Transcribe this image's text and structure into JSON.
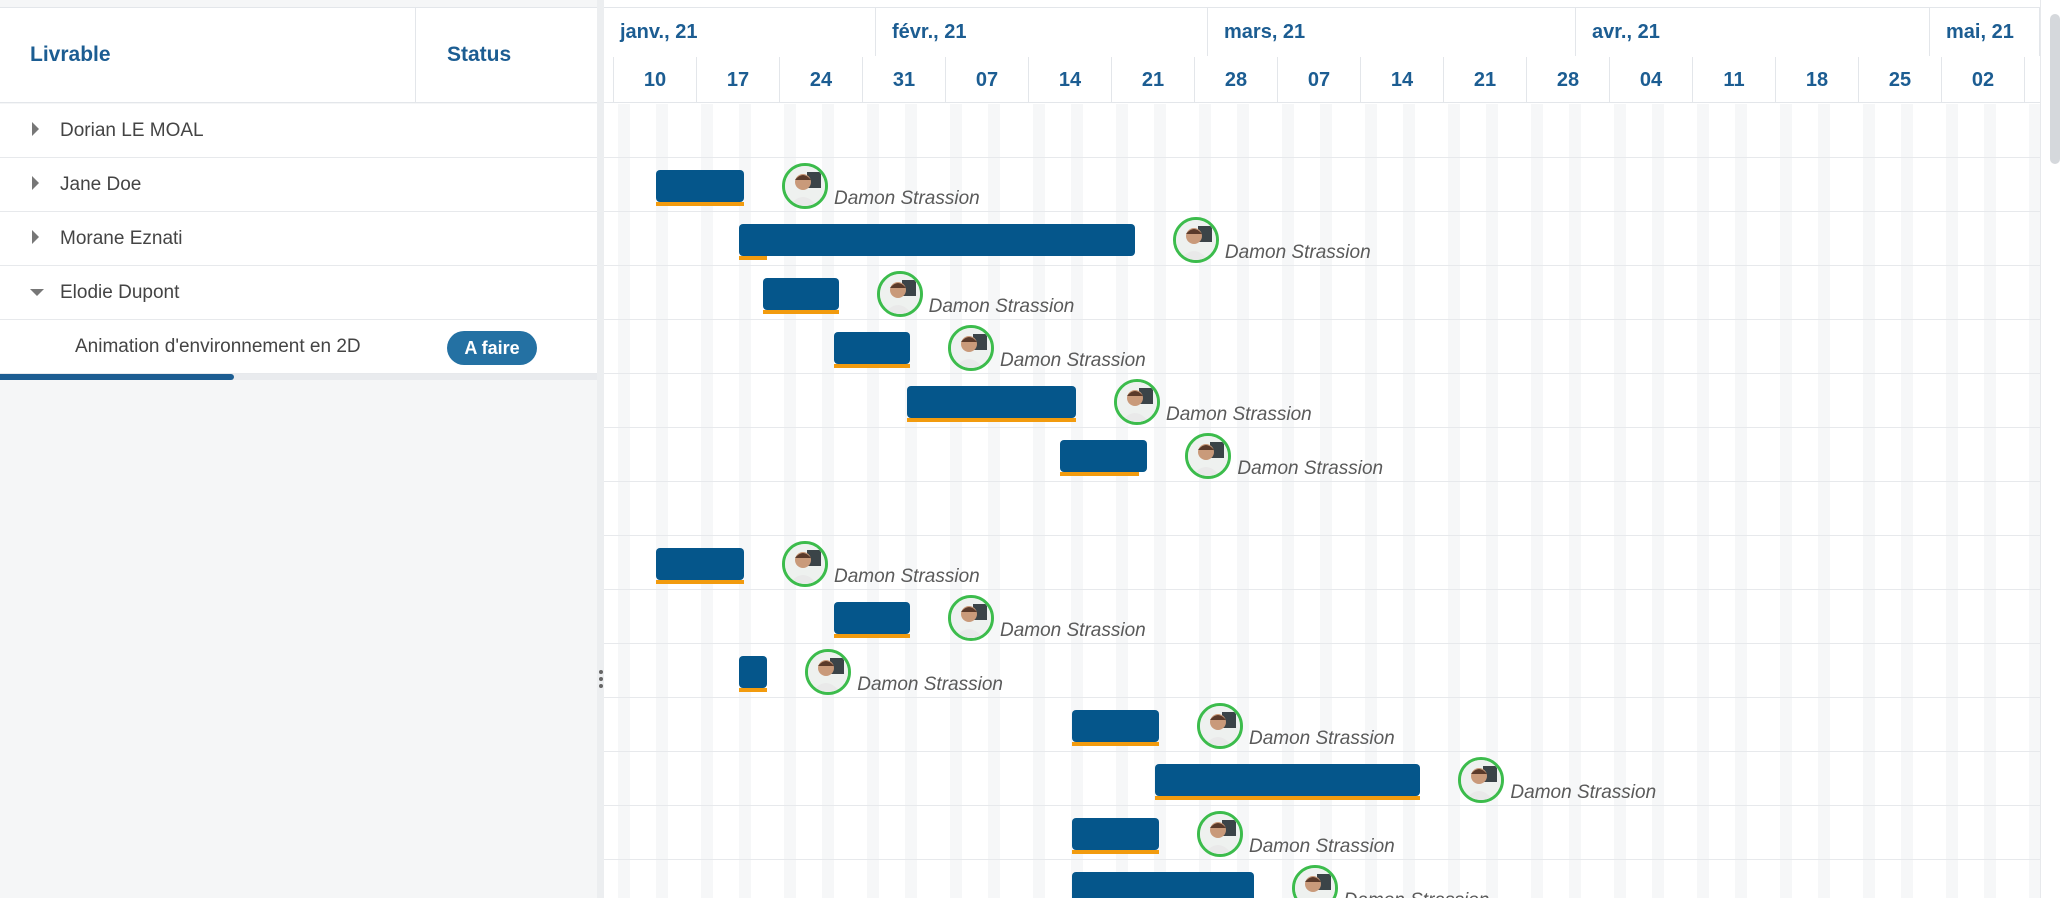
{
  "header": {
    "livrable": "Livrable",
    "status": "Status"
  },
  "tree": [
    {
      "label": "Dorian LE MOAL",
      "expanded": false
    },
    {
      "label": "Jane Doe",
      "expanded": false
    },
    {
      "label": "Morane Eznati",
      "expanded": false
    },
    {
      "label": "Elodie Dupont",
      "expanded": true
    },
    {
      "label": "Animation d'environnement en 2D",
      "status": "A faire",
      "child": true
    }
  ],
  "progress": {
    "value": 0.39
  },
  "timeline": {
    "months": [
      "janv., 21",
      "févr., 21",
      "mars, 21",
      "avr., 21",
      "mai, 21"
    ],
    "weeks": [
      "10",
      "17",
      "24",
      "31",
      "07",
      "14",
      "21",
      "28",
      "07",
      "14",
      "21",
      "28",
      "04",
      "11",
      "18",
      "25",
      "02"
    ]
  },
  "tasks": [
    {
      "row": 1,
      "start": 0.0,
      "end": 1.06,
      "progress": 1.0,
      "assignee": "Damon Strassion"
    },
    {
      "row": 2,
      "start": 1.0,
      "end": 5.77,
      "progress": 0.07,
      "assignee": "Damon Strassion"
    },
    {
      "row": 3,
      "start": 1.29,
      "end": 2.2,
      "progress": 1.0,
      "assignee": "Damon Strassion"
    },
    {
      "row": 4,
      "start": 2.15,
      "end": 3.06,
      "progress": 1.0,
      "assignee": "Damon Strassion"
    },
    {
      "row": 5,
      "start": 3.02,
      "end": 5.06,
      "progress": 1.0,
      "assignee": "Damon Strassion"
    },
    {
      "row": 6,
      "start": 4.87,
      "end": 5.92,
      "progress": 0.9,
      "assignee": "Damon Strassion"
    },
    {
      "row": 8,
      "start": 0.0,
      "end": 1.06,
      "progress": 1.0,
      "assignee": "Damon Strassion"
    },
    {
      "row": 9,
      "start": 2.15,
      "end": 3.06,
      "progress": 1.0,
      "assignee": "Damon Strassion"
    },
    {
      "row": 10,
      "start": 1.0,
      "end": 1.34,
      "progress": 1.0,
      "assignee": "Damon Strassion"
    },
    {
      "row": 11,
      "start": 5.01,
      "end": 6.06,
      "progress": 1.0,
      "assignee": "Damon Strassion"
    },
    {
      "row": 12,
      "start": 6.01,
      "end": 9.21,
      "progress": 1.0,
      "assignee": "Damon Strassion"
    },
    {
      "row": 13,
      "start": 5.01,
      "end": 6.06,
      "progress": 1.0,
      "assignee": "Damon Strassion"
    },
    {
      "row": 14,
      "start": 5.01,
      "end": 7.2,
      "progress": 1.0,
      "assignee": "Damon Strassion"
    }
  ],
  "colors": {
    "accent": "#1c5d92",
    "bar": "#05568b",
    "progress": "#f29b0e",
    "avatar_ring": "#3cbc4c",
    "badge": "#2471a3"
  },
  "icons": {
    "expand": "caret-right-icon",
    "collapse": "caret-down-icon",
    "resize": "drag-handle-icon"
  }
}
